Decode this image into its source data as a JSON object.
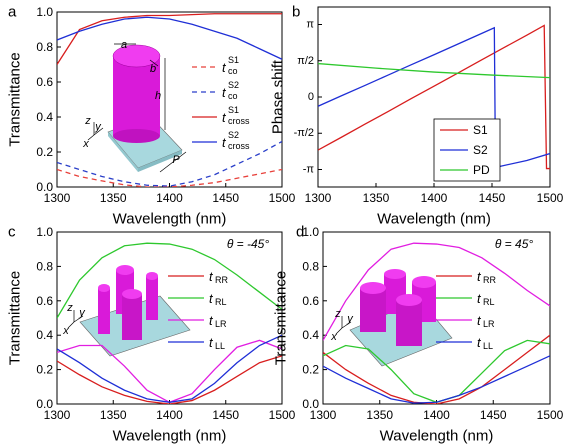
{
  "chart_data": [
    {
      "type": "line",
      "panel_label": "a",
      "xlabel": "Wavelength (nm)",
      "ylabel": "Transmittance",
      "xlim": [
        1300,
        1500
      ],
      "ylim": [
        0,
        1
      ],
      "xticks": [
        1300,
        1350,
        1400,
        1450,
        1500
      ],
      "yticks": [
        {
          "value": 0,
          "label": "0.0"
        },
        0.2,
        0.4,
        0.6,
        0.8,
        {
          "value": 1,
          "label": "1.0"
        }
      ],
      "x": [
        1300,
        1320,
        1340,
        1360,
        1380,
        1400,
        1420,
        1440,
        1460,
        1480,
        1500
      ],
      "inset_labels": [
        "a",
        "b",
        "h",
        "P",
        "z",
        "y",
        "x"
      ],
      "series": [
        {
          "name": "t",
          "sub": "co",
          "sup": "S1",
          "color": "#e8403a",
          "linestyle": "dashed",
          "values": [
            0.1,
            0.06,
            0.035,
            0.012,
            0.0,
            0.0,
            0.01,
            0.025,
            0.05,
            0.075,
            0.1
          ]
        },
        {
          "name": "t",
          "sub": "co",
          "sup": "S2",
          "color": "#2a3fc9",
          "linestyle": "dashed",
          "values": [
            0.14,
            0.1,
            0.06,
            0.03,
            0.01,
            0.005,
            0.03,
            0.07,
            0.13,
            0.19,
            0.26
          ]
        },
        {
          "name": "t",
          "sub": "cross",
          "sup": "S1",
          "color": "#d81e1e",
          "linestyle": "solid",
          "values": [
            0.7,
            0.9,
            0.95,
            0.97,
            0.98,
            0.98,
            0.985,
            0.99,
            0.99,
            0.99,
            0.99
          ]
        },
        {
          "name": "t",
          "sub": "cross",
          "sup": "S2",
          "color": "#1f2fd6",
          "linestyle": "solid",
          "values": [
            0.84,
            0.89,
            0.93,
            0.96,
            0.97,
            0.96,
            0.93,
            0.89,
            0.85,
            0.79,
            0.73
          ]
        }
      ]
    },
    {
      "type": "line",
      "panel_label": "b",
      "xlabel": "Wavelength (nm)",
      "ylabel": "Phase shift",
      "xlim": [
        1300,
        1500
      ],
      "ylim": [
        -3.9,
        3.9
      ],
      "xticks": [
        1300,
        1350,
        1400,
        1450,
        1500
      ],
      "yticks": [
        {
          "value": -3.14159,
          "label": "-π"
        },
        {
          "value": -1.5708,
          "label": "-π/2"
        },
        0,
        {
          "value": 1.5708,
          "label": "π/2"
        },
        {
          "value": 3.14159,
          "label": "π"
        }
      ],
      "legend": "lower right",
      "series": [
        {
          "name": "S1",
          "color": "#d81e1e",
          "x": [
            1300,
            1320,
            1340,
            1360,
            1380,
            1400,
            1420,
            1440,
            1460,
            1480,
            1495,
            1497,
            1500
          ],
          "values": [
            -2.3,
            -1.75,
            -1.19,
            -0.64,
            -0.08,
            0.47,
            1.02,
            1.58,
            2.13,
            2.68,
            3.1,
            -3.1,
            -3.1
          ]
        },
        {
          "name": "S2",
          "color": "#1f2fd6",
          "x": [
            1300,
            1320,
            1340,
            1360,
            1380,
            1400,
            1420,
            1440,
            1452,
            1453,
            1480,
            1500
          ],
          "values": [
            -0.4,
            0.05,
            0.49,
            0.94,
            1.39,
            1.83,
            2.28,
            2.73,
            3.0,
            -3.05,
            -2.75,
            -2.45
          ]
        },
        {
          "name": "PD",
          "color": "#2ec82e",
          "x": [
            1300,
            1350,
            1400,
            1450,
            1500
          ],
          "values": [
            1.45,
            1.25,
            1.08,
            0.95,
            0.84
          ]
        }
      ]
    },
    {
      "type": "line",
      "panel_label": "c",
      "xlabel": "Wavelength (nm)",
      "ylabel": "Transmittance",
      "annotation": "θ = -45°",
      "xlim": [
        1300,
        1500
      ],
      "ylim": [
        0,
        1
      ],
      "xticks": [
        1300,
        1350,
        1400,
        1450,
        1500
      ],
      "yticks": [
        {
          "value": 0,
          "label": "0.0"
        },
        0.2,
        0.4,
        0.6,
        0.8,
        {
          "value": 1,
          "label": "1.0"
        }
      ],
      "x": [
        1300,
        1320,
        1340,
        1360,
        1380,
        1400,
        1420,
        1440,
        1460,
        1480,
        1500
      ],
      "inset_labels": [
        "z",
        "y",
        "x"
      ],
      "series": [
        {
          "name": "t",
          "sub": "RR",
          "color": "#d81e1e",
          "values": [
            0.25,
            0.17,
            0.1,
            0.05,
            0.015,
            0.0,
            0.02,
            0.08,
            0.16,
            0.24,
            0.28
          ]
        },
        {
          "name": "t",
          "sub": "RL",
          "color": "#2ec82e",
          "values": [
            0.5,
            0.72,
            0.85,
            0.92,
            0.935,
            0.93,
            0.9,
            0.84,
            0.75,
            0.65,
            0.55
          ]
        },
        {
          "name": "t",
          "sub": "LR",
          "color": "#e11ee1",
          "values": [
            0.3,
            0.34,
            0.34,
            0.22,
            0.08,
            0.01,
            0.06,
            0.2,
            0.33,
            0.37,
            0.32
          ]
        },
        {
          "name": "t",
          "sub": "LL",
          "color": "#1f2fd6",
          "values": [
            0.32,
            0.24,
            0.15,
            0.08,
            0.03,
            0.01,
            0.03,
            0.12,
            0.24,
            0.34,
            0.4
          ]
        }
      ]
    },
    {
      "type": "line",
      "panel_label": "d",
      "xlabel": "Wavelength (nm)",
      "ylabel": "Transmittance",
      "annotation": "θ = 45°",
      "xlim": [
        1300,
        1500
      ],
      "ylim": [
        0,
        1
      ],
      "xticks": [
        1300,
        1350,
        1400,
        1450,
        1500
      ],
      "yticks": [
        {
          "value": 0,
          "label": "0.0"
        },
        0.2,
        0.4,
        0.6,
        0.8,
        {
          "value": 1,
          "label": "1.0"
        }
      ],
      "x": [
        1300,
        1320,
        1340,
        1360,
        1380,
        1400,
        1420,
        1440,
        1460,
        1480,
        1500
      ],
      "inset_labels": [
        "z",
        "y",
        "x"
      ],
      "series": [
        {
          "name": "t",
          "sub": "RR",
          "color": "#d81e1e",
          "values": [
            0.3,
            0.2,
            0.12,
            0.05,
            0.01,
            0.0,
            0.03,
            0.1,
            0.2,
            0.3,
            0.4
          ]
        },
        {
          "name": "t",
          "sub": "RL",
          "color": "#2ec82e",
          "values": [
            0.28,
            0.34,
            0.32,
            0.2,
            0.06,
            0.01,
            0.05,
            0.18,
            0.31,
            0.37,
            0.35
          ]
        },
        {
          "name": "t",
          "sub": "LR",
          "color": "#e11ee1",
          "values": [
            0.37,
            0.6,
            0.78,
            0.9,
            0.935,
            0.93,
            0.91,
            0.85,
            0.76,
            0.66,
            0.57
          ]
        },
        {
          "name": "t",
          "sub": "LL",
          "color": "#1f2fd6",
          "values": [
            0.22,
            0.15,
            0.09,
            0.03,
            0.005,
            0.01,
            0.05,
            0.1,
            0.16,
            0.22,
            0.28
          ]
        }
      ]
    }
  ]
}
